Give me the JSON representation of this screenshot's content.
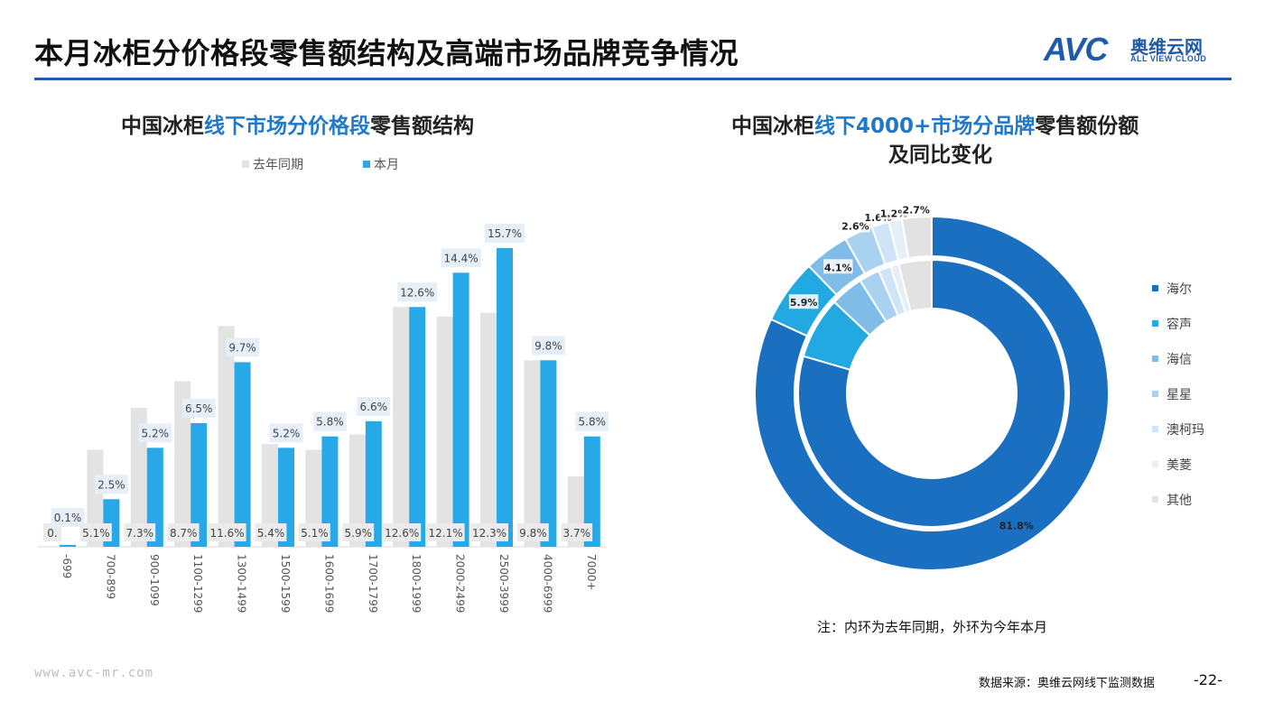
{
  "header": {
    "title": "本月冰柜分价格段零售额结构及高端市场品牌竞争情况",
    "logo_text": "AVC",
    "logo_cn": "奥维云网",
    "logo_en": "ALL VIEW CLOUD"
  },
  "left_chart": {
    "title_pre": "中国冰柜",
    "title_hl": "线下市场分价格段",
    "title_post": "零售额结构"
  },
  "right_chart": {
    "title_pre": "中国冰柜",
    "title_hl": "线下4000+市场分品牌",
    "title_post": "零售额份额",
    "title_line2": "及同比变化",
    "note": "注：内环为去年同期，外环为今年本月"
  },
  "footer": {
    "website": "www.avc-mr.com",
    "source": "数据来源：奥维云网线下监测数据",
    "page": "-22-"
  },
  "colors": {
    "title_rule": "#1f5ba8",
    "highlight": "#1f78c8",
    "last_year": "#e3e3e3",
    "this_month": "#26a9e6"
  },
  "chart_data": [
    {
      "type": "bar",
      "categories": [
        "-699",
        "700-899",
        "900-1099",
        "1100-1299",
        "1300-1499",
        "1500-1599",
        "1600-1699",
        "1700-1799",
        "1800-1999",
        "2000-2499",
        "2500-3999",
        "4000-6999",
        "7000+"
      ],
      "series": [
        {
          "name": "去年同期",
          "values": [
            0.0,
            5.1,
            7.3,
            8.7,
            11.6,
            5.4,
            5.1,
            5.9,
            12.6,
            12.1,
            12.3,
            9.8,
            3.7
          ],
          "labels": [
            "0.",
            "5.1%",
            "7.3%",
            "8.7%",
            "11.6%",
            "5.4%",
            "5.1%",
            "5.9%",
            "12.6%",
            "12.1%",
            "12.3%",
            "9.8%",
            "3.7%"
          ]
        },
        {
          "name": "本月",
          "values": [
            0.1,
            2.5,
            5.2,
            6.5,
            9.7,
            5.2,
            5.8,
            6.6,
            12.6,
            14.4,
            15.7,
            9.8,
            5.8
          ],
          "labels": [
            "0.1%",
            "2.5%",
            "5.2%",
            "6.5%",
            "9.7%",
            "5.2%",
            "5.8%",
            "6.6%",
            "12.6%",
            "14.4%",
            "15.7%",
            "9.8%",
            "5.8%"
          ]
        }
      ],
      "unit": "%",
      "ylim": [
        0,
        16.5
      ],
      "legend_position": "top"
    },
    {
      "type": "pie",
      "variant": "nested-donut",
      "categories": [
        "海尔",
        "容声",
        "海信",
        "星星",
        "澳柯玛",
        "美菱",
        "其他"
      ],
      "colors": [
        "#1b6fc0",
        "#23a9e2",
        "#7fbde8",
        "#a9d2f1",
        "#cfe4f6",
        "#e6eff8",
        "#e2e2e2"
      ],
      "outer_ring": {
        "name": "今年本月",
        "values": [
          81.8,
          5.9,
          4.1,
          2.6,
          1.6,
          1.2,
          2.7
        ],
        "labels": [
          "81.8%",
          "5.9%",
          "4.1%",
          "2.6%",
          "1.6%",
          "1.2%",
          "2.7%"
        ]
      },
      "inner_ring": {
        "name": "去年同期",
        "values": [
          79.5,
          7.5,
          4.0,
          2.5,
          1.5,
          1.0,
          4.0
        ]
      },
      "legend_position": "right"
    }
  ]
}
